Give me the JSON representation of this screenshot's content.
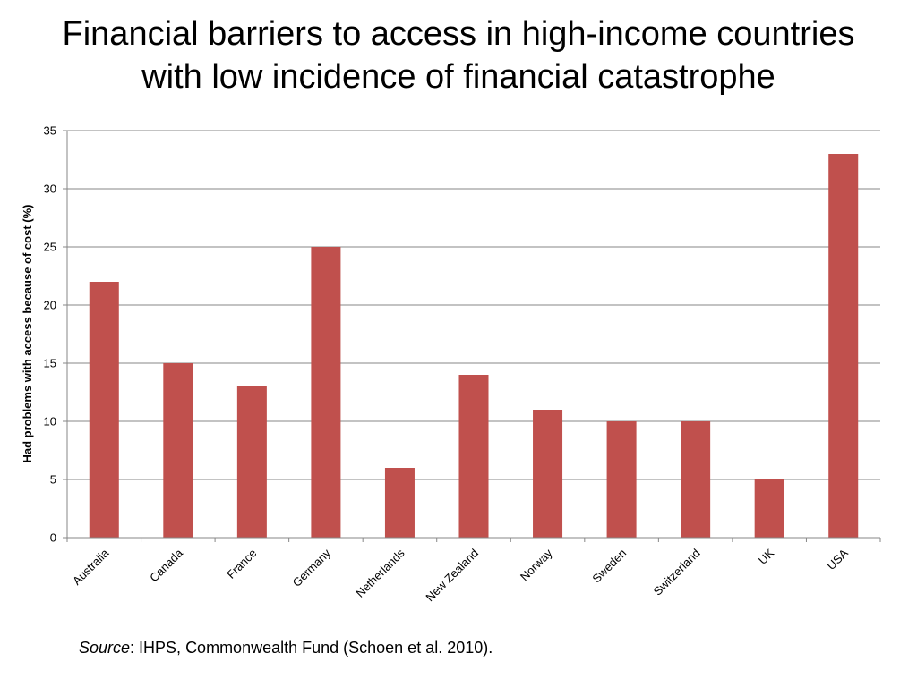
{
  "slide": {
    "title_line1": "Financial barriers to access in high-income countries",
    "title_line2": "with low incidence of financial catastrophe",
    "source_label": "Source",
    "source_text": ": IHPS, Commonwealth Fund (Schoen et al. 2010)."
  },
  "chart_data": {
    "type": "bar",
    "title": "Financial barriers to access in high-income countries with low incidence of financial catastrophe",
    "xlabel": "",
    "ylabel": "Had problems with access because of cost (%)",
    "categories": [
      "Australia",
      "Canada",
      "France",
      "Germany",
      "Netherlands",
      "New Zealand",
      "Norway",
      "Sweden",
      "Switzerland",
      "UK",
      "USA"
    ],
    "values": [
      22,
      15,
      13,
      25,
      6,
      14,
      11,
      10,
      10,
      5,
      33
    ],
    "ylim": [
      0,
      35
    ],
    "yticks": [
      0,
      5,
      10,
      15,
      20,
      25,
      30,
      35
    ],
    "grid": true,
    "legend": "none",
    "bar_color": "#C0504D"
  }
}
